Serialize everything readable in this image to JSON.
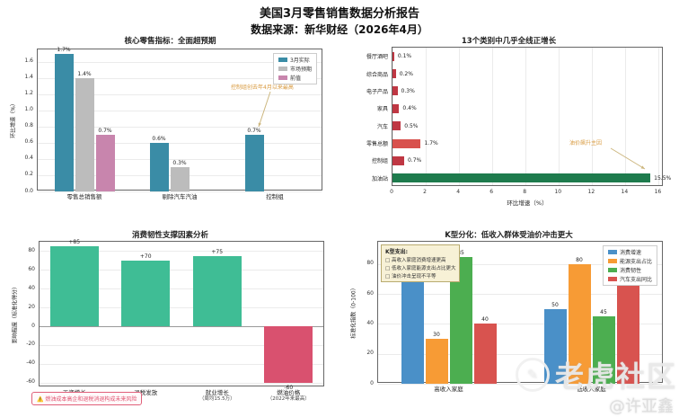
{
  "header": {
    "title": "美国3月零售销售数据分析报告",
    "subtitle": "数据来源：新华财经（2026年4月）"
  },
  "watermark": {
    "community": "老虎社区",
    "author": "@许亚鑫",
    "icon": "tiger-pen-icon"
  },
  "colors": {
    "annotation_orange": "#d89a3f",
    "arrow_tan": "#cdb77f",
    "risk_red": "#e0506e",
    "teal": "#3a8ca6",
    "gray": "#bcbcbc",
    "mauve": "#c885ad",
    "crimson": "#bf3743",
    "bright_red": "#d8514d",
    "green_dark": "#1e7b4d",
    "seagreen": "#3fbd95",
    "pink_red": "#d9516f",
    "blue": "#4a90c8",
    "orange": "#f79b35",
    "green": "#4cae50",
    "red": "#d8534f"
  },
  "chart_data": [
    {
      "id": "core-retail",
      "type": "bar",
      "title": "核心零售指标：全面超预期",
      "ylabel": "环比增速（%）",
      "ylim": [
        0,
        1.75
      ],
      "yticks": [
        "0.0",
        "0.2",
        "0.4",
        "0.6",
        "0.8",
        "1.0",
        "1.2",
        "1.4",
        "1.6"
      ],
      "grid": true,
      "legend_position": "top-right",
      "categories": [
        "零售总销售额",
        "剔除汽车汽油",
        "控制组"
      ],
      "series": [
        {
          "name": "3月实际",
          "color": "#3a8ca6",
          "values": [
            1.7,
            0.6,
            0.7
          ],
          "labels": [
            "1.7%",
            "0.6%",
            "0.7%"
          ]
        },
        {
          "name": "市场预期",
          "color": "#bcbcbc",
          "values": [
            1.4,
            0.3,
            null
          ],
          "labels": [
            "1.4%",
            "0.3%",
            null
          ]
        },
        {
          "name": "前值",
          "color": "#c885ad",
          "values": [
            0.7,
            null,
            null
          ],
          "labels": [
            "0.7%",
            null,
            null
          ]
        }
      ],
      "annotation": "控制组创去年4月以来最高"
    },
    {
      "id": "category-growth",
      "type": "bar",
      "orientation": "horizontal",
      "title": "13个类别中几乎全线正增长",
      "xlabel": "环比增速（%）",
      "xlim": [
        0,
        16.3
      ],
      "xticks": [
        0,
        2,
        4,
        6,
        8,
        10,
        12,
        14,
        16
      ],
      "grid": true,
      "categories": [
        "餐厅酒吧",
        "综合商品",
        "电子产品",
        "家具",
        "汽车",
        "零售总额",
        "控制组",
        "加油站"
      ],
      "values": [
        0.1,
        0.2,
        0.3,
        0.4,
        0.5,
        1.7,
        0.7,
        15.5
      ],
      "labels": [
        "0.1%",
        "0.2%",
        "0.3%",
        "0.4%",
        "0.5%",
        "1.7%",
        "0.7%",
        "15.5%"
      ],
      "bar_colors": [
        "#bf3743",
        "#bf3743",
        "#bf3743",
        "#bf3743",
        "#bf3743",
        "#d8514d",
        "#bf3743",
        "#1e7b4d"
      ],
      "annotation": "油价飙升主因"
    },
    {
      "id": "resilience-factors",
      "type": "bar",
      "title": "消费韧性支撑因素分析",
      "ylabel": "影响程度（标准化得分）",
      "ylim": [
        -65,
        90
      ],
      "yticks": [
        "-60",
        "-40",
        "-20",
        "0",
        "20",
        "40",
        "60",
        "80"
      ],
      "grid": true,
      "categories": [
        {
          "label": "工资增长",
          "sub": ""
        },
        {
          "label": "退税发放",
          "sub": ""
        },
        {
          "label": "就业增长",
          "sub": "（周均15.5万）"
        },
        {
          "label": "燃油价格",
          "sub": "（2022年来最高）"
        }
      ],
      "values": [
        85,
        70,
        75,
        -60
      ],
      "labels": [
        "+85",
        "+70",
        "+75",
        "-60"
      ],
      "bar_colors": [
        "#3fbd95",
        "#3fbd95",
        "#3fbd95",
        "#d9516f"
      ],
      "annotation": "⚠️ 燃油成本高企和退税消退构成未来风险"
    },
    {
      "id": "k-divergence",
      "type": "bar",
      "title": "K型分化：低收入群体受油价冲击更大",
      "ylabel": "标准化指数（0-100）",
      "ylim": [
        0,
        95
      ],
      "yticks": [
        "0",
        "20",
        "40",
        "60",
        "80"
      ],
      "grid": true,
      "legend_position": "top-right",
      "categories": [
        "高收入家庭",
        "低收入家庭"
      ],
      "series": [
        {
          "name": "消费增速",
          "color": "#4a90c8",
          "values": [
            85,
            50
          ],
          "labels": [
            "85",
            "50"
          ]
        },
        {
          "name": "能源支出占比",
          "color": "#f79b35",
          "values": [
            30,
            80
          ],
          "labels": [
            "30",
            "80"
          ]
        },
        {
          "name": "消费韧性",
          "color": "#4cae50",
          "values": [
            85,
            45
          ],
          "labels": [
            "85",
            "45"
          ]
        },
        {
          "name": "汽车支出同比",
          "color": "#d8534f",
          "values": [
            40,
            75
          ],
          "labels": [
            "40",
            "75"
          ]
        }
      ],
      "note_box": {
        "title": "K型支出:",
        "lines": [
          "□ 高收入家庭消费增速更高",
          "□ 低收入家庭能源支出占比更大",
          "□ 油价冲击呈现不平等"
        ]
      }
    }
  ]
}
